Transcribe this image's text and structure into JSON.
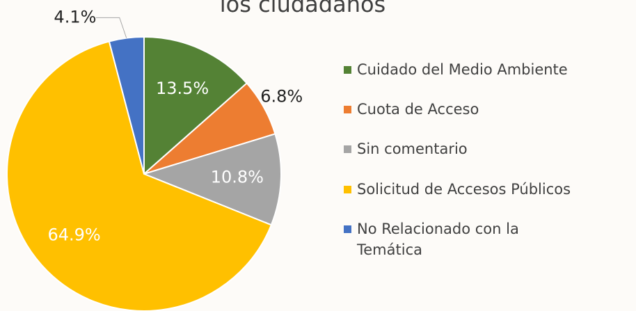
{
  "chart_data": {
    "type": "pie",
    "title": "los ciudadanos",
    "categories": [
      "Cuidado del Medio Ambiente",
      "Cuota de Acceso",
      "Sin comentario",
      "Solicitud de Accesos Públicos",
      "No Relacionado con la Temática"
    ],
    "values": [
      13.5,
      6.8,
      10.8,
      64.9,
      4.1
    ],
    "value_labels": [
      "13.5%",
      "6.8%",
      "10.8%",
      "64.9%",
      "4.1%"
    ],
    "colors": [
      "#548235",
      "#ed7d31",
      "#a5a5a5",
      "#ffc000",
      "#4472c4"
    ],
    "legend": "right"
  }
}
